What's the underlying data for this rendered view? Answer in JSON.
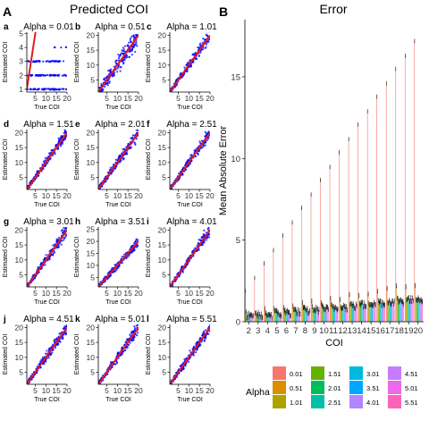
{
  "panel_a": {
    "letter": "A",
    "title": "Predicted COI",
    "xlabel": "True COI",
    "ylabel": "Estimated COI",
    "point_color": "#0000FF",
    "line_color": "#E41A1C"
  },
  "panel_b": {
    "letter": "B",
    "title": "Error",
    "xlabel": "COI",
    "ylabel": "Mean Absolute Error",
    "legend_title": "Alpha"
  },
  "chart_data": [
    {
      "type": "scatter",
      "subplot": "a",
      "title": "Alpha = 0.01",
      "xlabel": "True COI",
      "ylabel": "Estimated COI",
      "x_ticks": [
        "5",
        "10",
        "15",
        "20"
      ],
      "xlim": [
        1,
        20
      ],
      "y_ticks": [
        "1",
        "2",
        "3",
        "4",
        "5"
      ],
      "ylim": [
        0.8,
        5.1
      ],
      "estimated_levels": [
        1,
        2,
        3,
        4
      ],
      "reference_line": "y = x"
    },
    {
      "type": "scatter",
      "subplot": "b",
      "title": "Alpha = 0.51",
      "xlabel": "True COI",
      "ylabel": "Estimated COI",
      "x_ticks": [
        "5",
        "10",
        "15",
        "20"
      ],
      "xlim": [
        1,
        20
      ],
      "y_ticks": [
        "5",
        "10",
        "15",
        "20"
      ],
      "ylim": [
        1,
        21
      ],
      "reference_line": "y = x"
    },
    {
      "type": "scatter",
      "subplot": "c",
      "title": "Alpha = 1.01",
      "xlabel": "True COI",
      "ylabel": "Estimated COI",
      "x_ticks": [
        "5",
        "10",
        "15",
        "20"
      ],
      "xlim": [
        1,
        20
      ],
      "y_ticks": [
        "5",
        "10",
        "15",
        "20"
      ],
      "ylim": [
        1,
        21
      ],
      "reference_line": "y = x"
    },
    {
      "type": "scatter",
      "subplot": "d",
      "title": "Alpha = 1.51",
      "xlabel": "True COI",
      "ylabel": "Estimated COI",
      "x_ticks": [
        "5",
        "10",
        "15",
        "20"
      ],
      "xlim": [
        1,
        20
      ],
      "y_ticks": [
        "5",
        "10",
        "15",
        "20"
      ],
      "ylim": [
        1,
        21
      ],
      "reference_line": "y = x"
    },
    {
      "type": "scatter",
      "subplot": "e",
      "title": "Alpha = 2.01",
      "xlabel": "True COI",
      "ylabel": "Estimated COI",
      "x_ticks": [
        "5",
        "10",
        "15",
        "20"
      ],
      "xlim": [
        1,
        20
      ],
      "y_ticks": [
        "5",
        "10",
        "15",
        "20"
      ],
      "ylim": [
        1,
        21
      ],
      "reference_line": "y = x"
    },
    {
      "type": "scatter",
      "subplot": "f",
      "title": "Alpha = 2.51",
      "xlabel": "True COI",
      "ylabel": "Estimated COI",
      "x_ticks": [
        "5",
        "10",
        "15",
        "20"
      ],
      "xlim": [
        1,
        20
      ],
      "y_ticks": [
        "5",
        "10",
        "15",
        "20"
      ],
      "ylim": [
        1,
        21
      ],
      "reference_line": "y = x"
    },
    {
      "type": "scatter",
      "subplot": "g",
      "title": "Alpha = 3.01",
      "xlabel": "True COI",
      "ylabel": "Estimated COI",
      "x_ticks": [
        "5",
        "10",
        "15",
        "20"
      ],
      "xlim": [
        1,
        20
      ],
      "y_ticks": [
        "5",
        "10",
        "15",
        "20"
      ],
      "ylim": [
        1,
        21
      ],
      "reference_line": "y = x"
    },
    {
      "type": "scatter",
      "subplot": "h",
      "title": "Alpha = 3.51",
      "xlabel": "True COI",
      "ylabel": "Estimated COI",
      "x_ticks": [
        "5",
        "10",
        "15",
        "20"
      ],
      "xlim": [
        1,
        20
      ],
      "y_ticks": [
        "5",
        "10",
        "15",
        "20",
        "25"
      ],
      "ylim": [
        1,
        26
      ],
      "reference_line": "y = x"
    },
    {
      "type": "scatter",
      "subplot": "i",
      "title": "Alpha = 4.01",
      "xlabel": "True COI",
      "ylabel": "Estimated COI",
      "x_ticks": [
        "5",
        "10",
        "15",
        "20"
      ],
      "xlim": [
        1,
        20
      ],
      "y_ticks": [
        "5",
        "10",
        "15",
        "20"
      ],
      "ylim": [
        1,
        21
      ],
      "reference_line": "y = x"
    },
    {
      "type": "scatter",
      "subplot": "j",
      "title": "Alpha = 4.51",
      "xlabel": "True COI",
      "ylabel": "Estimated COI",
      "x_ticks": [
        "5",
        "10",
        "15",
        "20"
      ],
      "xlim": [
        1,
        20
      ],
      "y_ticks": [
        "5",
        "10",
        "15",
        "20"
      ],
      "ylim": [
        1,
        21
      ],
      "reference_line": "y = x"
    },
    {
      "type": "scatter",
      "subplot": "k",
      "title": "Alpha = 5.01",
      "xlabel": "True COI",
      "ylabel": "Estimated COI",
      "x_ticks": [
        "5",
        "10",
        "15",
        "20"
      ],
      "xlim": [
        1,
        20
      ],
      "y_ticks": [
        "5",
        "10",
        "15",
        "20"
      ],
      "ylim": [
        1,
        21
      ],
      "reference_line": "y = x"
    },
    {
      "type": "scatter",
      "subplot": "l",
      "title": "Alpha = 5.51",
      "xlabel": "True COI",
      "ylabel": "Estimated COI",
      "x_ticks": [
        "5",
        "10",
        "15",
        "20"
      ],
      "xlim": [
        1,
        20
      ],
      "y_ticks": [
        "5",
        "10",
        "15",
        "20"
      ],
      "ylim": [
        1,
        21
      ],
      "reference_line": "y = x"
    },
    {
      "type": "bar",
      "subplot": "B",
      "title": "Error",
      "xlabel": "COI",
      "ylabel": "Mean Absolute Error",
      "categories": [
        "2",
        "3",
        "4",
        "5",
        "6",
        "7",
        "8",
        "9",
        "10",
        "11",
        "12",
        "13",
        "14",
        "15",
        "16",
        "17",
        "18",
        "19",
        "20"
      ],
      "y_ticks": [
        "0",
        "5",
        "10",
        "15"
      ],
      "ylim": [
        0,
        18.5
      ],
      "max_error_by_coi": [
        1.9,
        2.7,
        3.6,
        4.4,
        5.3,
        6.1,
        7.0,
        7.8,
        8.7,
        9.5,
        10.4,
        11.2,
        12.1,
        12.9,
        13.8,
        14.6,
        15.5,
        16.3,
        17.2
      ],
      "legend_title": "Alpha",
      "legend_position": "bottom",
      "series": [
        {
          "name": "0.01",
          "color": "#F8766D"
        },
        {
          "name": "0.51",
          "color": "#DB8E00"
        },
        {
          "name": "1.01",
          "color": "#AEA200"
        },
        {
          "name": "1.51",
          "color": "#64B200"
        },
        {
          "name": "2.01",
          "color": "#00BD5C"
        },
        {
          "name": "2.51",
          "color": "#00C1A7"
        },
        {
          "name": "3.01",
          "color": "#00BADE"
        },
        {
          "name": "3.51",
          "color": "#00A6FF"
        },
        {
          "name": "4.01",
          "color": "#B385FF"
        },
        {
          "name": "4.51",
          "color": "#C77CFF"
        },
        {
          "name": "5.01",
          "color": "#EF67EB"
        },
        {
          "name": "5.51",
          "color": "#FF63B6"
        }
      ]
    }
  ]
}
